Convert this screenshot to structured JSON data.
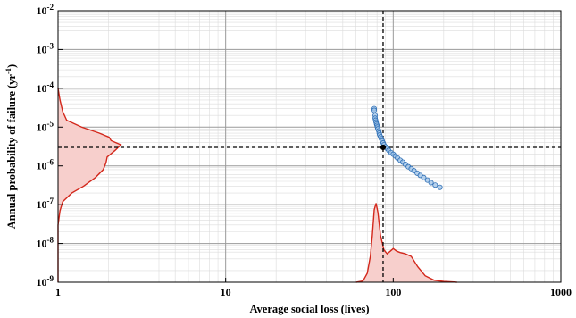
{
  "chart_data": {
    "type": "scatter",
    "title": "",
    "xlabel": "Average social loss (lives)",
    "ylabel_main": "Annual probability of failure (yr",
    "ylabel_sup": "-1",
    "ylabel_close": ")",
    "x_scale": "log",
    "y_scale": "log",
    "xlim": [
      1,
      1000
    ],
    "ylim": [
      1e-09,
      0.01
    ],
    "grid": true,
    "x_ticks": [
      {
        "value": 1,
        "label": "1"
      },
      {
        "value": 10,
        "label": "10"
      },
      {
        "value": 100,
        "label": "100"
      },
      {
        "value": 1000,
        "label": "1000"
      }
    ],
    "y_ticks": [
      {
        "value": 1e-09,
        "base": "10",
        "exp": "-9"
      },
      {
        "value": 1e-08,
        "base": "10",
        "exp": "-8"
      },
      {
        "value": 1e-07,
        "base": "10",
        "exp": "-7"
      },
      {
        "value": 1e-06,
        "base": "10",
        "exp": "-6"
      },
      {
        "value": 1e-05,
        "base": "10",
        "exp": "-5"
      },
      {
        "value": 0.0001,
        "base": "10",
        "exp": "-4"
      },
      {
        "value": 0.001,
        "base": "10",
        "exp": "-3"
      },
      {
        "value": 0.01,
        "base": "10",
        "exp": "-2"
      }
    ],
    "scatter_points": [
      [
        77,
        3e-05
      ],
      [
        77,
        2.7e-05
      ],
      [
        78,
        2e-05
      ],
      [
        78,
        1.7e-05
      ],
      [
        78.5,
        1.5e-05
      ],
      [
        79,
        1.35e-05
      ],
      [
        79.5,
        1.2e-05
      ],
      [
        80,
        1.1e-05
      ],
      [
        80.5,
        1e-05
      ],
      [
        81,
        9e-06
      ],
      [
        82,
        8e-06
      ],
      [
        82.5,
        7e-06
      ],
      [
        83,
        6.3e-06
      ],
      [
        84,
        5.6e-06
      ],
      [
        85,
        5e-06
      ],
      [
        86,
        4.4e-06
      ],
      [
        87,
        3.9e-06
      ],
      [
        88,
        3.5e-06
      ],
      [
        90,
        3.1e-06
      ],
      [
        92,
        2.8e-06
      ],
      [
        94,
        2.5e-06
      ],
      [
        97,
        2.2e-06
      ],
      [
        100,
        2e-06
      ],
      [
        103,
        1.8e-06
      ],
      [
        106,
        1.6e-06
      ],
      [
        110,
        1.4e-06
      ],
      [
        114,
        1.25e-06
      ],
      [
        118,
        1.1e-06
      ],
      [
        123,
        9.5e-07
      ],
      [
        128,
        8.5e-07
      ],
      [
        133,
        7.5e-07
      ],
      [
        139,
        6.5e-07
      ],
      [
        145,
        5.7e-07
      ],
      [
        152,
        5e-07
      ],
      [
        160,
        4.3e-07
      ],
      [
        168,
        3.7e-07
      ],
      [
        178,
        3.2e-07
      ],
      [
        190,
        2.8e-07
      ]
    ],
    "mean_point": [
      87,
      3e-06
    ],
    "vertical_dashed_x": 87,
    "horizontal_dashed_y": 3e-06,
    "y_density": [
      [
        1e-09,
        0.0
      ],
      [
        3e-08,
        0.0
      ],
      [
        7e-08,
        0.05
      ],
      [
        1.2e-07,
        0.12
      ],
      [
        2e-07,
        0.35
      ],
      [
        3e-07,
        0.65
      ],
      [
        5e-07,
        0.95
      ],
      [
        8e-07,
        1.15
      ],
      [
        1.2e-06,
        1.22
      ],
      [
        1.7e-06,
        1.25
      ],
      [
        2.5e-06,
        1.45
      ],
      [
        3.5e-06,
        1.6
      ],
      [
        4.5e-06,
        1.35
      ],
      [
        5.5e-06,
        1.3
      ],
      [
        7e-06,
        1.05
      ],
      [
        1e-05,
        0.6
      ],
      [
        1.5e-05,
        0.22
      ],
      [
        2.5e-05,
        0.12
      ],
      [
        5e-05,
        0.05
      ],
      [
        0.0001,
        0.0
      ]
    ],
    "x_density": [
      [
        60,
        0.0
      ],
      [
        66,
        0.05
      ],
      [
        70,
        0.35
      ],
      [
        73,
        1.0
      ],
      [
        75,
        1.8
      ],
      [
        77,
        2.8
      ],
      [
        79,
        3.05
      ],
      [
        81,
        2.7
      ],
      [
        84,
        1.8
      ],
      [
        88,
        1.25
      ],
      [
        92,
        1.1
      ],
      [
        96,
        1.2
      ],
      [
        100,
        1.3
      ],
      [
        105,
        1.2
      ],
      [
        110,
        1.15
      ],
      [
        118,
        1.1
      ],
      [
        128,
        1.0
      ],
      [
        140,
        0.6
      ],
      [
        155,
        0.25
      ],
      [
        175,
        0.08
      ],
      [
        200,
        0.03
      ],
      [
        230,
        0.01
      ],
      [
        240,
        0.0
      ]
    ],
    "colors": {
      "point_fill": "#9ec3e8",
      "point_stroke": "#2f6fb5",
      "density_line": "#d3281c",
      "density_fill": "#f7cfcc",
      "dashed": "#000000",
      "grid_major": "#9a9a9a",
      "grid_minor": "#dcdcdc"
    }
  }
}
